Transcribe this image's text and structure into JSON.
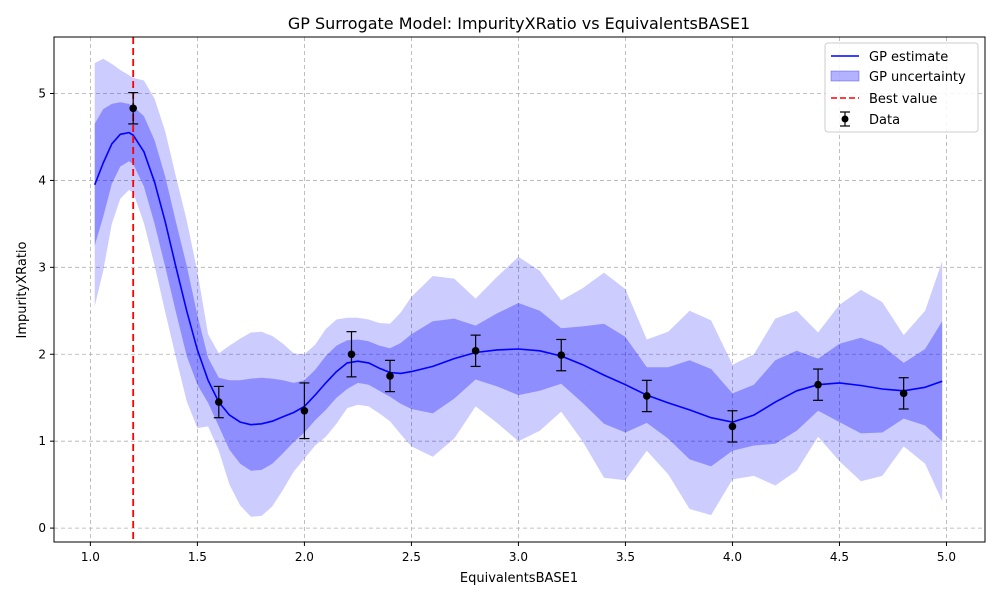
{
  "chart_data": {
    "type": "line",
    "title": "GP Surrogate Model: ImpurityXRatio vs EquivalentsBASE1",
    "xlabel": "EquivalentsBASE1",
    "ylabel": "ImpurityXRatio",
    "xlim": [
      0.83,
      5.18
    ],
    "ylim": [
      -0.16,
      5.65
    ],
    "xticks": [
      "1.0",
      "1.5",
      "2.0",
      "2.5",
      "3.0",
      "3.5",
      "4.0",
      "4.5",
      "5.0"
    ],
    "xtick_values": [
      1.0,
      1.5,
      2.0,
      2.5,
      3.0,
      3.5,
      4.0,
      4.5,
      5.0
    ],
    "yticks": [
      "0",
      "1",
      "2",
      "3",
      "4",
      "5"
    ],
    "ytick_values": [
      0,
      1,
      2,
      3,
      4,
      5
    ],
    "grid": true,
    "legend_position": "top-right",
    "legend": [
      "GP estimate",
      "GP uncertainty",
      "Best value",
      "Data"
    ],
    "colors": {
      "estimate": "#0000ff",
      "uncertainty": "#0000ff",
      "best": "#ff0000",
      "data": "#000000"
    },
    "gp_estimate": {
      "x": [
        1.02,
        1.06,
        1.1,
        1.14,
        1.18,
        1.2,
        1.25,
        1.3,
        1.35,
        1.4,
        1.45,
        1.5,
        1.55,
        1.6,
        1.65,
        1.7,
        1.75,
        1.8,
        1.85,
        1.9,
        1.95,
        2.0,
        2.05,
        2.1,
        2.15,
        2.2,
        2.25,
        2.3,
        2.35,
        2.4,
        2.45,
        2.5,
        2.6,
        2.7,
        2.8,
        2.9,
        3.0,
        3.1,
        3.2,
        3.3,
        3.4,
        3.5,
        3.6,
        3.7,
        3.8,
        3.9,
        4.0,
        4.1,
        4.2,
        4.3,
        4.4,
        4.5,
        4.6,
        4.7,
        4.8,
        4.9,
        4.98
      ],
      "mean": [
        3.95,
        4.2,
        4.42,
        4.53,
        4.55,
        4.52,
        4.33,
        3.98,
        3.52,
        3.0,
        2.5,
        2.05,
        1.7,
        1.45,
        1.3,
        1.22,
        1.19,
        1.2,
        1.23,
        1.28,
        1.33,
        1.4,
        1.53,
        1.67,
        1.8,
        1.9,
        1.92,
        1.9,
        1.84,
        1.79,
        1.78,
        1.8,
        1.86,
        1.95,
        2.02,
        2.05,
        2.06,
        2.04,
        1.98,
        1.88,
        1.76,
        1.65,
        1.53,
        1.44,
        1.36,
        1.27,
        1.22,
        1.3,
        1.45,
        1.58,
        1.65,
        1.67,
        1.64,
        1.6,
        1.58,
        1.62,
        1.69
      ],
      "inner_upper": [
        4.65,
        4.82,
        4.88,
        4.9,
        4.88,
        4.85,
        4.74,
        4.46,
        4.04,
        3.52,
        3.02,
        2.45,
        1.96,
        1.73,
        1.7,
        1.7,
        1.72,
        1.73,
        1.72,
        1.7,
        1.67,
        1.7,
        1.82,
        1.98,
        2.1,
        2.16,
        2.17,
        2.15,
        2.1,
        2.07,
        2.13,
        2.23,
        2.38,
        2.41,
        2.33,
        2.47,
        2.59,
        2.5,
        2.3,
        2.32,
        2.35,
        2.2,
        1.85,
        1.85,
        1.93,
        1.83,
        1.55,
        1.65,
        1.93,
        2.04,
        1.95,
        2.12,
        2.19,
        2.1,
        1.9,
        2.06,
        2.38
      ],
      "inner_lower": [
        3.25,
        3.58,
        3.96,
        4.16,
        4.22,
        4.19,
        3.93,
        3.5,
        3.0,
        2.48,
        1.98,
        1.65,
        1.44,
        1.17,
        0.9,
        0.74,
        0.66,
        0.67,
        0.74,
        0.86,
        0.99,
        1.1,
        1.24,
        1.36,
        1.5,
        1.6,
        1.67,
        1.65,
        1.58,
        1.51,
        1.43,
        1.37,
        1.32,
        1.49,
        1.71,
        1.63,
        1.53,
        1.58,
        1.66,
        1.44,
        1.2,
        1.1,
        1.21,
        1.03,
        0.79,
        0.71,
        0.89,
        0.95,
        0.97,
        1.12,
        1.35,
        1.22,
        1.09,
        1.1,
        1.26,
        1.18,
        1.0
      ],
      "outer_upper": [
        5.35,
        5.4,
        5.34,
        5.27,
        5.21,
        5.18,
        5.15,
        4.94,
        4.56,
        4.04,
        3.54,
        2.95,
        2.23,
        2.01,
        2.1,
        2.18,
        2.25,
        2.26,
        2.21,
        2.12,
        2.01,
        2.0,
        2.11,
        2.29,
        2.4,
        2.42,
        2.42,
        2.4,
        2.36,
        2.35,
        2.48,
        2.66,
        2.9,
        2.87,
        2.64,
        2.89,
        3.12,
        2.96,
        2.62,
        2.76,
        2.94,
        2.75,
        2.17,
        2.26,
        2.5,
        2.39,
        1.88,
        2.0,
        2.41,
        2.5,
        2.25,
        2.57,
        2.74,
        2.6,
        2.22,
        2.5,
        3.07
      ],
      "outer_lower": [
        2.55,
        2.96,
        3.5,
        3.79,
        3.89,
        3.86,
        3.51,
        3.02,
        2.48,
        1.96,
        1.46,
        1.15,
        1.17,
        0.89,
        0.5,
        0.26,
        0.13,
        0.14,
        0.25,
        0.44,
        0.65,
        0.8,
        0.95,
        1.05,
        1.2,
        1.38,
        1.42,
        1.4,
        1.32,
        1.23,
        1.08,
        0.94,
        0.82,
        1.03,
        1.4,
        1.21,
        1.0,
        1.12,
        1.34,
        1.0,
        0.58,
        0.55,
        0.89,
        0.62,
        0.22,
        0.15,
        0.56,
        0.6,
        0.49,
        0.66,
        1.05,
        0.77,
        0.54,
        0.6,
        0.94,
        0.74,
        0.31
      ]
    },
    "best_value_x": 1.2,
    "data_points": {
      "x": [
        1.2,
        1.6,
        2.0,
        2.22,
        2.4,
        2.8,
        3.2,
        3.6,
        4.0,
        4.4,
        4.8
      ],
      "y": [
        4.83,
        1.45,
        1.35,
        2.0,
        1.75,
        2.04,
        1.99,
        1.52,
        1.17,
        1.65,
        1.55
      ],
      "error": [
        0.18,
        0.18,
        0.32,
        0.26,
        0.18,
        0.18,
        0.18,
        0.18,
        0.18,
        0.18,
        0.18
      ]
    }
  }
}
